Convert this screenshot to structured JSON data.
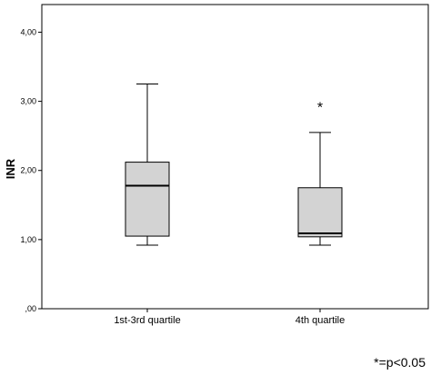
{
  "chart_data": {
    "type": "boxplot",
    "ylabel": "INR",
    "ylim": [
      0,
      4.4
    ],
    "yticks": [
      {
        "value": 0,
        "label": ",00"
      },
      {
        "value": 1,
        "label": "1,00"
      },
      {
        "value": 2,
        "label": "2,00"
      },
      {
        "value": 3,
        "label": "3,00"
      },
      {
        "value": 4,
        "label": "4,00"
      }
    ],
    "categories": [
      "1st-3rd quartile",
      "4th quartile"
    ],
    "boxes": [
      {
        "category": "1st-3rd quartile",
        "min": 0.92,
        "q1": 1.05,
        "median": 1.78,
        "q3": 2.12,
        "max": 3.25
      },
      {
        "category": "4th quartile",
        "min": 0.92,
        "q1": 1.04,
        "median": 1.09,
        "q3": 1.75,
        "max": 2.55
      }
    ],
    "annotations": [
      {
        "text": "*",
        "category": "4th quartile",
        "y": 3.0
      }
    ],
    "footnote": "*=p<0.05",
    "box_color": "#d3d3d3"
  }
}
